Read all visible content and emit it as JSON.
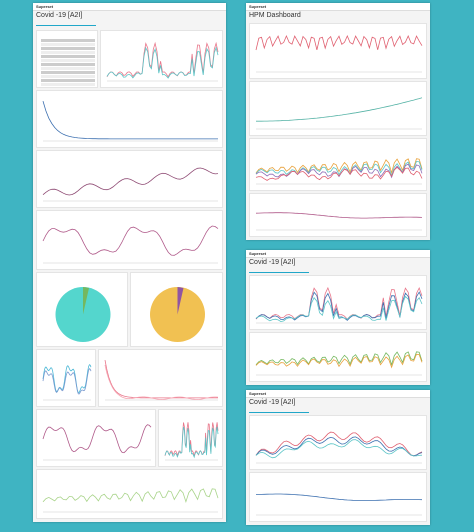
{
  "screens": [
    {
      "brand": "Superset",
      "title": "Covid -19 [A2I]"
    },
    {
      "brand": "Superset",
      "title": "HPM Dashboard"
    },
    {
      "brand": "Superset",
      "title": "Covid -19 [A2I]"
    },
    {
      "brand": "Superset",
      "title": "Covid -19 [A2I]"
    }
  ]
}
